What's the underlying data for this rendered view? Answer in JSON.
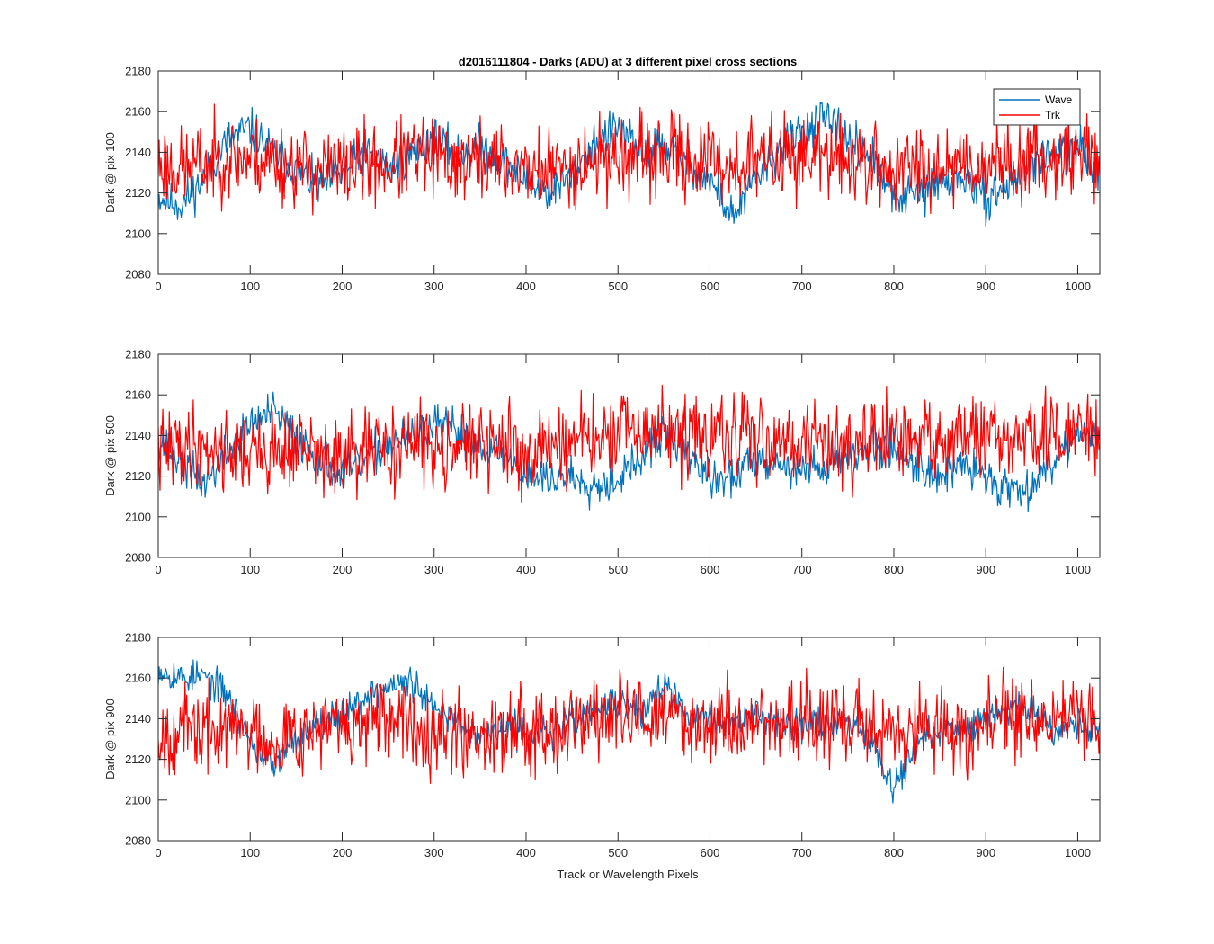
{
  "figure": {
    "title": "d2016111804 - Darks (ADU) at 3 different pixel cross sections",
    "xlabel": "Track or Wavelength Pixels",
    "colors": {
      "wave": "#0072BD",
      "trk": "#FF0000"
    }
  },
  "chart_data": [
    {
      "type": "line",
      "title": "d2016111804 - Darks (ADU) at 3 different pixel cross sections",
      "xlabel": "",
      "ylabel": "Dark @ pix 100",
      "xlim": [
        0,
        1024
      ],
      "ylim": [
        2080,
        2180
      ],
      "xticks": [
        0,
        100,
        200,
        300,
        400,
        500,
        600,
        700,
        800,
        900,
        1000
      ],
      "yticks": [
        2080,
        2100,
        2120,
        2140,
        2160,
        2180
      ],
      "grid": false,
      "legend": "top-right",
      "x_knots": [
        0,
        25,
        50,
        75,
        100,
        125,
        150,
        175,
        200,
        225,
        250,
        275,
        300,
        325,
        350,
        375,
        400,
        425,
        450,
        475,
        500,
        525,
        550,
        575,
        600,
        625,
        650,
        675,
        700,
        725,
        750,
        775,
        800,
        825,
        850,
        875,
        900,
        925,
        950,
        975,
        1000,
        1024
      ],
      "series": [
        {
          "name": "Wave",
          "color": "#0072BD",
          "values": [
            2118,
            2114,
            2127,
            2146,
            2152,
            2140,
            2131,
            2123,
            2129,
            2141,
            2132,
            2139,
            2147,
            2139,
            2143,
            2136,
            2126,
            2120,
            2129,
            2145,
            2152,
            2139,
            2144,
            2135,
            2126,
            2108,
            2127,
            2141,
            2151,
            2156,
            2146,
            2138,
            2118,
            2119,
            2125,
            2127,
            2117,
            2124,
            2135,
            2139,
            2142,
            2130
          ],
          "noise": 5,
          "seed": 11
        },
        {
          "name": "Trk",
          "color": "#FF0000",
          "values": [
            2135,
            2132,
            2134,
            2138,
            2137,
            2136,
            2133,
            2131,
            2132,
            2134,
            2133,
            2138,
            2137,
            2135,
            2136,
            2134,
            2132,
            2131,
            2134,
            2137,
            2138,
            2136,
            2139,
            2137,
            2135,
            2133,
            2136,
            2138,
            2139,
            2137,
            2136,
            2134,
            2131,
            2133,
            2135,
            2136,
            2134,
            2135,
            2137,
            2138,
            2140,
            2138
          ],
          "noise": 10,
          "seed": 23
        }
      ]
    },
    {
      "type": "line",
      "title": "",
      "xlabel": "",
      "ylabel": "Dark @ pix 500",
      "xlim": [
        0,
        1024
      ],
      "ylim": [
        2080,
        2180
      ],
      "xticks": [
        0,
        100,
        200,
        300,
        400,
        500,
        600,
        700,
        800,
        900,
        1000
      ],
      "yticks": [
        2080,
        2100,
        2120,
        2140,
        2160,
        2180
      ],
      "grid": false,
      "legend": "",
      "x_knots": [
        0,
        25,
        50,
        75,
        100,
        125,
        150,
        175,
        200,
        225,
        250,
        275,
        300,
        325,
        350,
        375,
        400,
        425,
        450,
        475,
        500,
        525,
        550,
        575,
        600,
        625,
        650,
        675,
        700,
        725,
        750,
        775,
        800,
        825,
        850,
        875,
        900,
        925,
        950,
        975,
        1000,
        1024
      ],
      "series": [
        {
          "name": "Wave",
          "color": "#0072BD",
          "values": [
            2138,
            2127,
            2116,
            2131,
            2145,
            2152,
            2139,
            2129,
            2121,
            2128,
            2136,
            2138,
            2145,
            2142,
            2136,
            2130,
            2121,
            2118,
            2120,
            2116,
            2119,
            2128,
            2141,
            2133,
            2117,
            2119,
            2130,
            2126,
            2123,
            2125,
            2131,
            2132,
            2134,
            2126,
            2120,
            2125,
            2120,
            2113,
            2116,
            2128,
            2144,
            2136
          ],
          "noise": 5,
          "seed": 37
        },
        {
          "name": "Trk",
          "color": "#FF0000",
          "values": [
            2131,
            2136,
            2135,
            2133,
            2131,
            2132,
            2134,
            2130,
            2127,
            2131,
            2134,
            2136,
            2135,
            2137,
            2135,
            2134,
            2130,
            2136,
            2138,
            2137,
            2140,
            2141,
            2142,
            2140,
            2139,
            2138,
            2140,
            2139,
            2138,
            2137,
            2136,
            2136,
            2137,
            2137,
            2138,
            2139,
            2138,
            2137,
            2140,
            2139,
            2141,
            2140
          ],
          "noise": 10,
          "seed": 41
        }
      ]
    },
    {
      "type": "line",
      "title": "",
      "xlabel": "Track or Wavelength Pixels",
      "ylabel": "Dark @ pix 900",
      "xlim": [
        0,
        1024
      ],
      "ylim": [
        2080,
        2180
      ],
      "xticks": [
        0,
        100,
        200,
        300,
        400,
        500,
        600,
        700,
        800,
        900,
        1000
      ],
      "yticks": [
        2080,
        2100,
        2120,
        2140,
        2160,
        2180
      ],
      "grid": false,
      "legend": "",
      "x_knots": [
        0,
        25,
        50,
        75,
        100,
        125,
        150,
        175,
        200,
        225,
        250,
        275,
        300,
        325,
        350,
        375,
        400,
        425,
        450,
        475,
        500,
        525,
        550,
        575,
        600,
        625,
        650,
        675,
        700,
        725,
        750,
        775,
        800,
        825,
        850,
        875,
        900,
        925,
        950,
        975,
        1000,
        1024
      ],
      "series": [
        {
          "name": "Wave",
          "color": "#0072BD",
          "values": [
            2165,
            2160,
            2161,
            2152,
            2130,
            2116,
            2130,
            2139,
            2142,
            2151,
            2156,
            2158,
            2144,
            2140,
            2132,
            2135,
            2134,
            2133,
            2139,
            2144,
            2148,
            2142,
            2158,
            2140,
            2142,
            2137,
            2142,
            2140,
            2138,
            2137,
            2140,
            2132,
            2106,
            2128,
            2133,
            2136,
            2141,
            2147,
            2145,
            2134,
            2138,
            2134
          ],
          "noise": 4,
          "seed": 53
        },
        {
          "name": "Trk",
          "color": "#FF0000",
          "values": [
            2133,
            2135,
            2133,
            2135,
            2134,
            2130,
            2133,
            2136,
            2135,
            2137,
            2136,
            2138,
            2136,
            2134,
            2133,
            2135,
            2137,
            2136,
            2138,
            2140,
            2141,
            2140,
            2141,
            2139,
            2138,
            2137,
            2139,
            2138,
            2139,
            2137,
            2137,
            2136,
            2133,
            2134,
            2136,
            2132,
            2138,
            2141,
            2139,
            2140,
            2142,
            2136
          ],
          "noise": 10,
          "seed": 67
        }
      ]
    }
  ]
}
